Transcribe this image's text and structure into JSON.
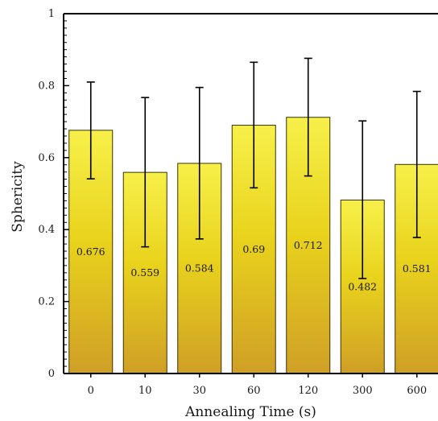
{
  "chart_data": {
    "type": "bar",
    "title": "",
    "xlabel": "Annealing Time (s)",
    "ylabel": "Sphericity",
    "categories": [
      "0",
      "10",
      "30",
      "60",
      "120",
      "300",
      "600"
    ],
    "values": [
      0.676,
      0.559,
      0.584,
      0.69,
      0.712,
      0.482,
      0.581
    ],
    "value_labels": [
      "0.676",
      "0.559",
      "0.584",
      "0.69",
      "0.712",
      "0.482",
      "0.581"
    ],
    "error_upper": [
      0.81,
      0.767,
      0.795,
      0.865,
      0.876,
      0.702,
      0.784
    ],
    "error_lower": [
      0.541,
      0.352,
      0.374,
      0.516,
      0.549,
      0.264,
      0.378
    ],
    "ylim": [
      0,
      1
    ],
    "yticks": [
      0,
      0.2,
      0.4,
      0.6,
      0.8,
      1
    ],
    "ytick_labels": [
      "0",
      "0.2",
      "0.4",
      "0.6",
      "0.8",
      "1"
    ],
    "grid": false,
    "colors": {
      "bar_top": "#f7f04a",
      "bar_mid": "#e9d31c",
      "bar_bottom": "#cf9f26",
      "bar_edge": "#3a3000",
      "axis": "#000000"
    }
  }
}
